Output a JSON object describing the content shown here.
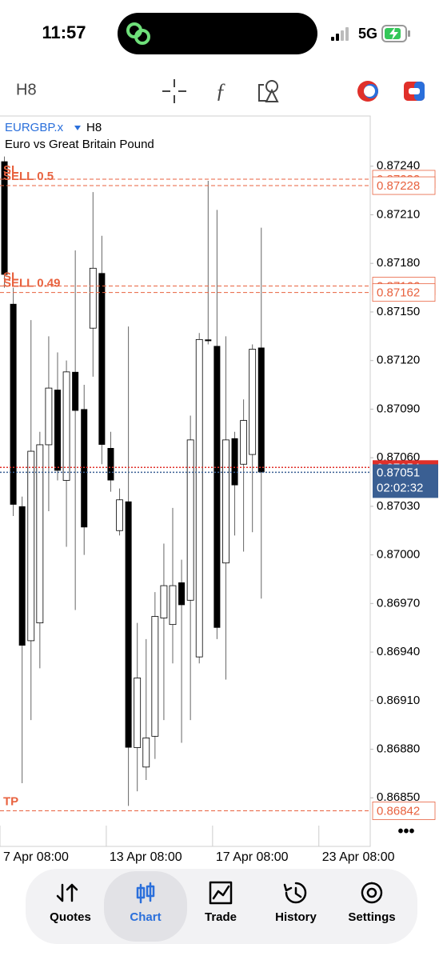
{
  "status_bar": {
    "time": "11:57",
    "network": "5G"
  },
  "toolbar": {
    "timeframe": "H8"
  },
  "chart_data": {
    "type": "candlestick",
    "title": "EURGBP.x",
    "timeframe": "H8",
    "subtitle": "Euro vs Great Britain Pound",
    "series": {
      "open": [
        0.87243,
        0.87155,
        0.8703,
        0.86947,
        0.86958,
        0.87068,
        0.87102,
        0.87046,
        0.87113,
        0.8709,
        0.8714,
        0.87174,
        0.87066,
        0.87015,
        0.87033,
        0.86881,
        0.86869,
        0.86888,
        0.86961,
        0.86957,
        0.86983,
        0.86972,
        0.86937,
        0.87133,
        0.87129,
        0.86995,
        0.87072,
        0.87056,
        0.87062,
        0.87128
      ],
      "high": [
        0.87246,
        0.87165,
        0.87036,
        0.87145,
        0.87076,
        0.87135,
        0.87125,
        0.8712,
        0.87188,
        0.87105,
        0.87224,
        0.87197,
        0.87076,
        0.87041,
        0.87141,
        0.86958,
        0.86948,
        0.86977,
        0.87007,
        0.87029,
        0.86997,
        0.87086,
        0.87137,
        0.87231,
        0.87213,
        0.87135,
        0.87076,
        0.87096,
        0.8713,
        0.87202
      ],
      "low": [
        0.87165,
        0.87024,
        0.86859,
        0.86898,
        0.8693,
        0.87027,
        0.87046,
        0.87005,
        0.86966,
        0.87,
        0.8711,
        0.87056,
        0.87039,
        0.87012,
        0.86845,
        0.86854,
        0.86861,
        0.86874,
        0.86898,
        0.86933,
        0.86884,
        0.86898,
        0.86933,
        0.8713,
        0.86948,
        0.86923,
        0.87012,
        0.87002,
        0.87014,
        0.86973
      ],
      "close": [
        0.87173,
        0.87031,
        0.86944,
        0.87064,
        0.87068,
        0.87103,
        0.87052,
        0.87113,
        0.87089,
        0.87017,
        0.87177,
        0.87068,
        0.87046,
        0.87034,
        0.86881,
        0.86924,
        0.86887,
        0.86962,
        0.86981,
        0.86981,
        0.86969,
        0.87071,
        0.87133,
        0.87132,
        0.86955,
        0.87071,
        0.87043,
        0.87083,
        0.87127,
        0.87051
      ]
    },
    "up_color": "#ffffff",
    "down_color": "#000000",
    "ylim": [
      0.8682,
      0.87271
    ],
    "yticks": [
      {
        "value": 0.8724,
        "label": "0.87240"
      },
      {
        "value": 0.8721,
        "label": "0.87210"
      },
      {
        "value": 0.8718,
        "label": "0.87180"
      },
      {
        "value": 0.8715,
        "label": "0.87150"
      },
      {
        "value": 0.8712,
        "label": "0.87120"
      },
      {
        "value": 0.8709,
        "label": "0.87090"
      },
      {
        "value": 0.8706,
        "label": "0.87060"
      },
      {
        "value": 0.8703,
        "label": "0.87030"
      },
      {
        "value": 0.87,
        "label": "0.87000"
      },
      {
        "value": 0.8697,
        "label": "0.86970"
      },
      {
        "value": 0.8694,
        "label": "0.86940"
      },
      {
        "value": 0.8691,
        "label": "0.86910"
      },
      {
        "value": 0.8688,
        "label": "0.86880"
      },
      {
        "value": 0.8685,
        "label": "0.86850"
      }
    ],
    "xlim": [
      -0.5,
      41.3
    ],
    "xticks": [
      {
        "value": -0.5,
        "label": "7 Apr 08:00"
      },
      {
        "value": 11.5,
        "label": "13 Apr 08:00"
      },
      {
        "value": 23.5,
        "label": "17 Apr 08:00"
      },
      {
        "value": 35.5,
        "label": "23 Apr 08:00"
      }
    ],
    "orders": [
      {
        "label": "SL",
        "price": 0.87232
      },
      {
        "label": "SELL 0.5",
        "price": 0.87228
      },
      {
        "label": "SL",
        "price": 0.87166
      },
      {
        "label": "SELL 0.49",
        "price": 0.87162
      },
      {
        "label": "TP",
        "price": 0.86842
      }
    ],
    "order_color": "#e8623f",
    "ask": {
      "price": 0.87054,
      "color": "#e0302a"
    },
    "bid": {
      "price": 0.87051,
      "countdown": "02:02:32",
      "color": "#3a5f93"
    }
  },
  "more_button": "•••",
  "tab_bar": {
    "tabs": [
      "Quotes",
      "Chart",
      "Trade",
      "History",
      "Settings"
    ],
    "active_index": 1
  }
}
